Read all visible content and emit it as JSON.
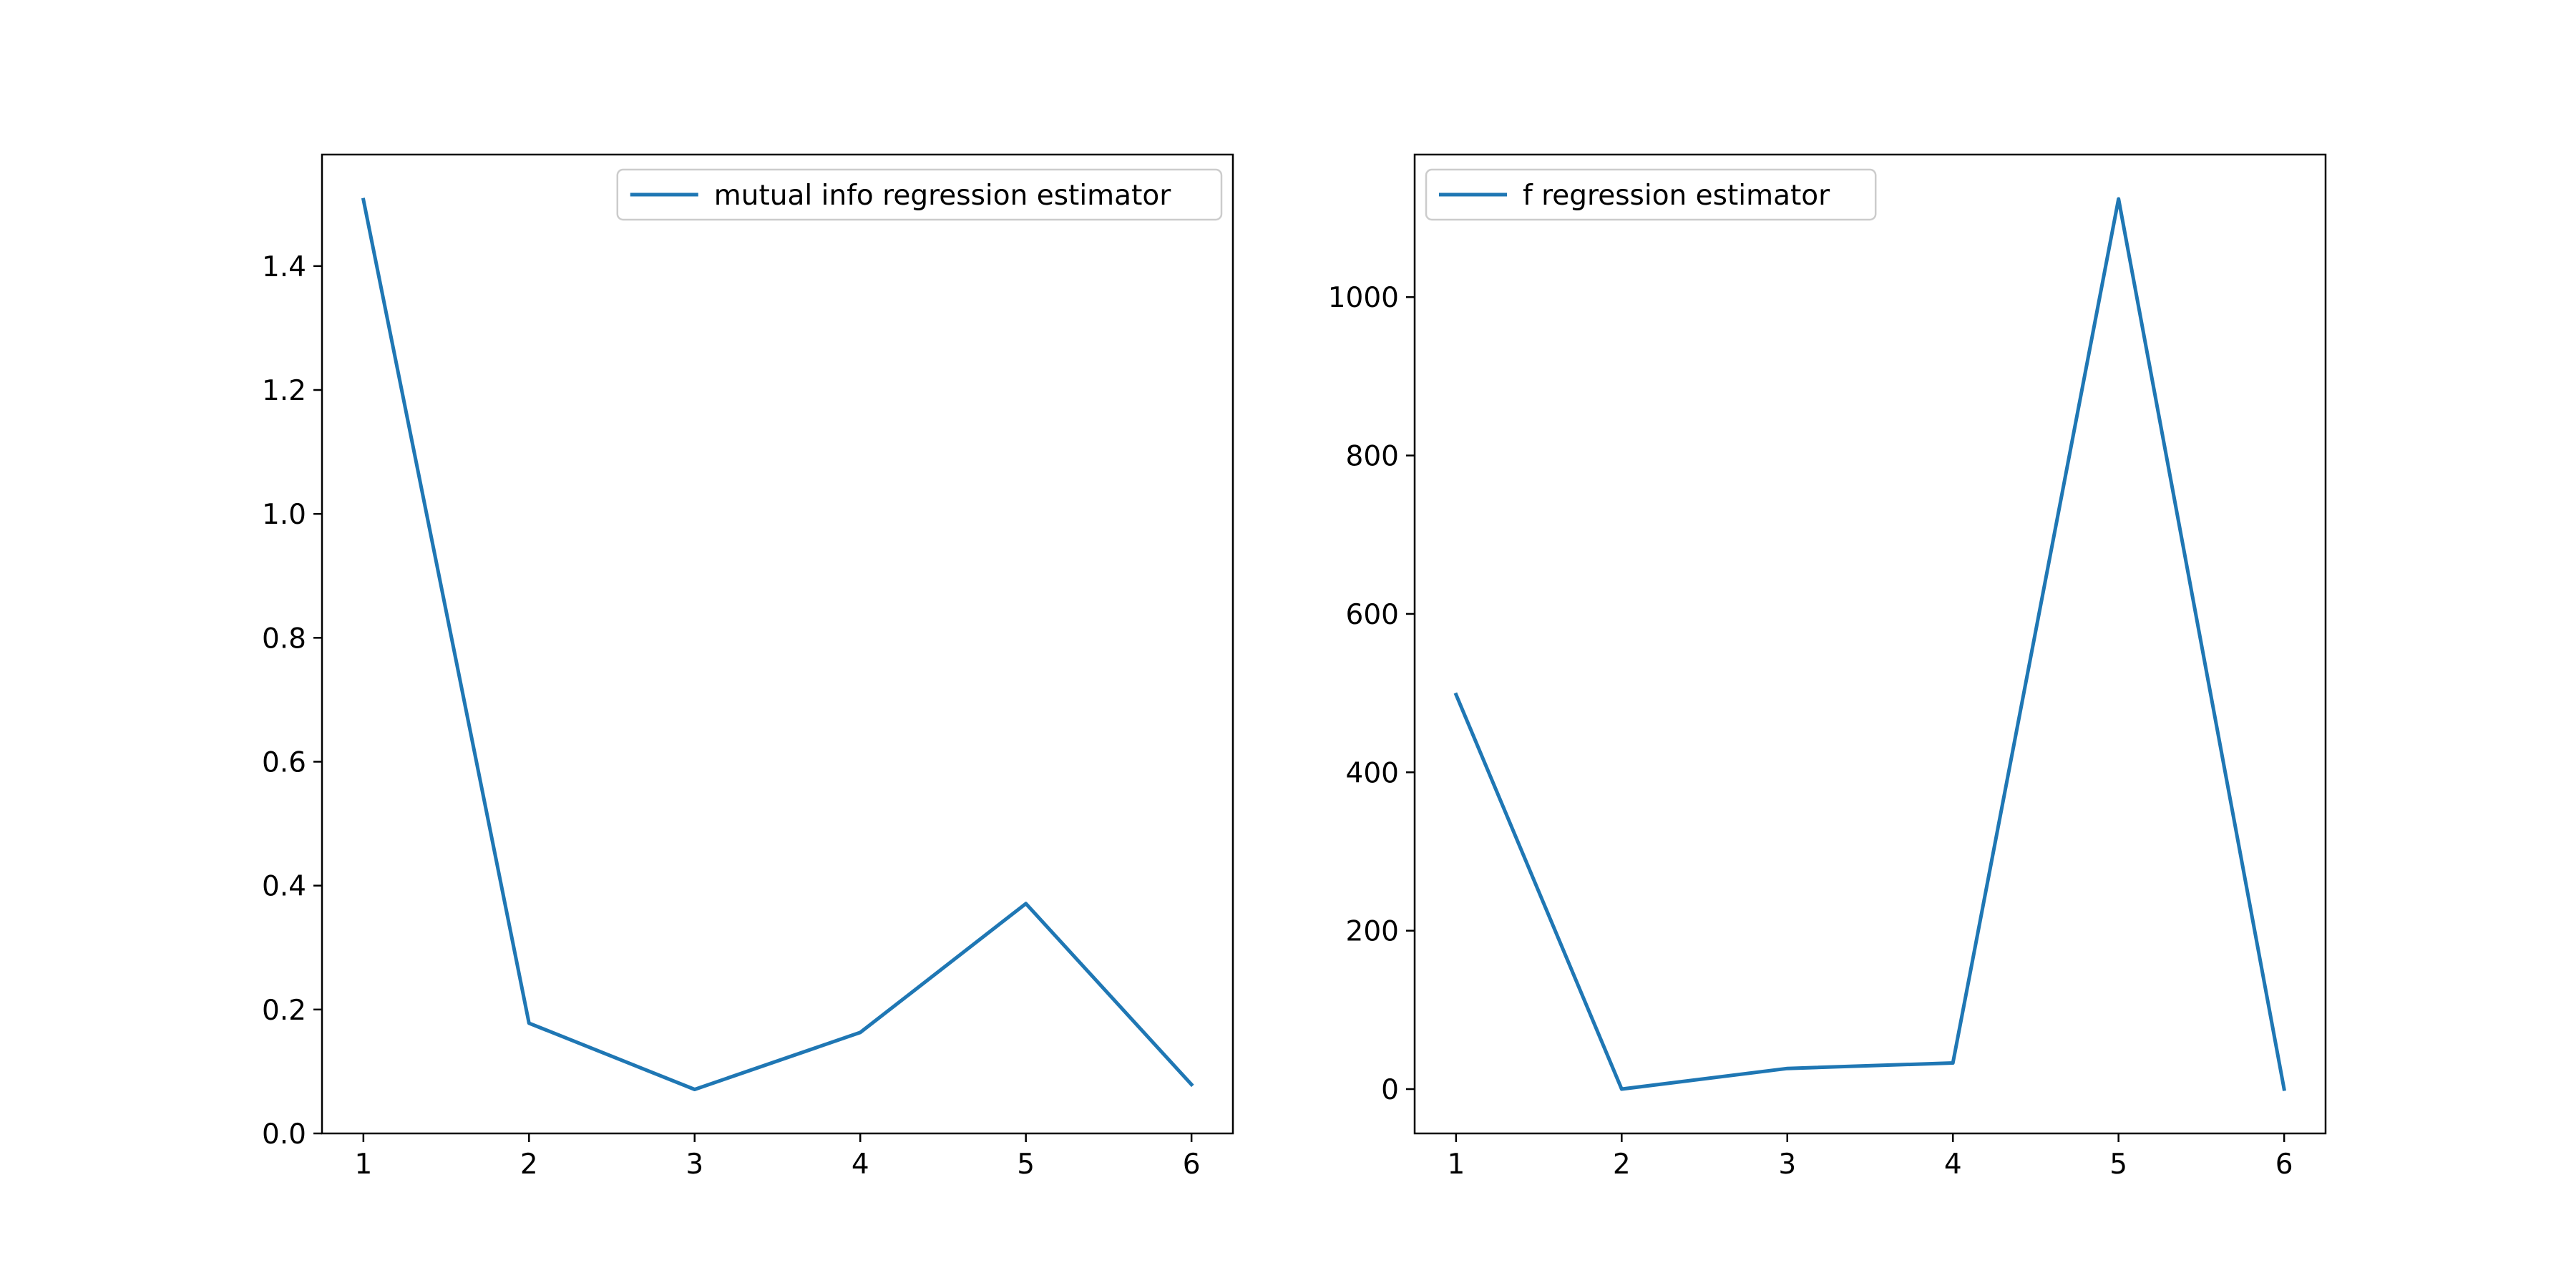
{
  "chart_data": [
    {
      "type": "line",
      "title": "",
      "xlabel": "",
      "ylabel": "",
      "x": [
        1,
        2,
        3,
        4,
        5,
        6
      ],
      "xticks": [
        "1",
        "2",
        "3",
        "4",
        "5",
        "6"
      ],
      "yticks": [
        "0.0",
        "0.2",
        "0.4",
        "0.6",
        "0.8",
        "1.0",
        "1.2",
        "1.4"
      ],
      "xlim": [
        0.75,
        6.25
      ],
      "ylim": [
        0.0,
        1.58
      ],
      "grid": false,
      "legend_position": "upper right",
      "series": [
        {
          "name": "mutual info regression estimator",
          "color": "#1f77b4",
          "values": [
            1.507,
            0.178,
            0.071,
            0.163,
            0.371,
            0.079
          ]
        }
      ]
    },
    {
      "type": "line",
      "title": "",
      "xlabel": "",
      "ylabel": "",
      "x": [
        1,
        2,
        3,
        4,
        5,
        6
      ],
      "xticks": [
        "1",
        "2",
        "3",
        "4",
        "5",
        "6"
      ],
      "yticks": [
        "0",
        "200",
        "400",
        "600",
        "800",
        "1000"
      ],
      "xlim": [
        0.75,
        6.25
      ],
      "ylim": [
        -56,
        1180
      ],
      "grid": false,
      "legend_position": "upper left",
      "series": [
        {
          "name": "f regression estimator",
          "color": "#1f77b4",
          "values": [
            498,
            0,
            26,
            33,
            1124,
            0
          ]
        }
      ]
    }
  ]
}
